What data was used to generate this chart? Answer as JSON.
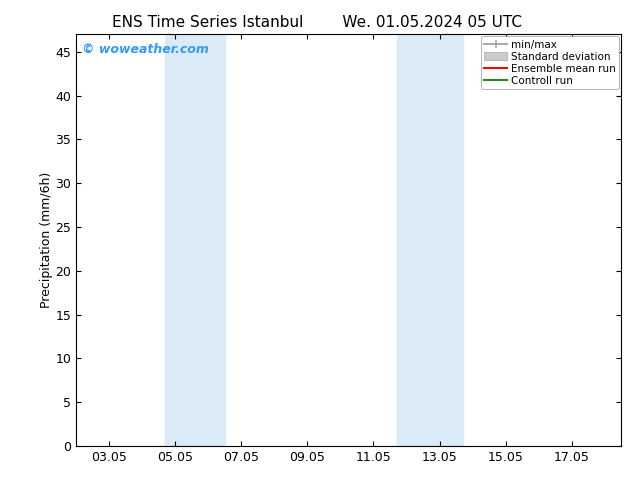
{
  "title_left": "ENS Time Series Istanbul",
  "title_right": "We. 01.05.2024 05 UTC",
  "ylabel": "Precipitation (mm/6h)",
  "xlabel": "",
  "ylim": [
    0,
    47
  ],
  "yticks": [
    0,
    5,
    10,
    15,
    20,
    25,
    30,
    35,
    40,
    45
  ],
  "xtick_labels": [
    "03.05",
    "05.05",
    "07.05",
    "09.05",
    "11.05",
    "13.05",
    "15.05",
    "17.05"
  ],
  "xtick_positions": [
    2,
    4,
    6,
    8,
    10,
    12,
    14,
    16
  ],
  "xmin": 1,
  "xmax": 17.5,
  "watermark": "© woweather.com",
  "watermark_color": "#3399ff",
  "bg_color": "#ffffff",
  "plot_bg_color": "#ffffff",
  "shaded_bands": [
    {
      "xmin": 3.7,
      "xmax": 5.5,
      "color": "#daeaf7"
    },
    {
      "xmin": 10.7,
      "xmax": 12.7,
      "color": "#daeaf7"
    }
  ],
  "legend_entries": [
    {
      "label": "min/max",
      "color": "#aaaaaa",
      "lw": 1.5,
      "style": "solid",
      "type": "line_cap"
    },
    {
      "label": "Standard deviation",
      "color": "#cccccc",
      "lw": 8,
      "style": "solid",
      "type": "patch"
    },
    {
      "label": "Ensemble mean run",
      "color": "#ff0000",
      "lw": 1.5,
      "style": "solid",
      "type": "line"
    },
    {
      "label": "Controll run",
      "color": "#228822",
      "lw": 1.5,
      "style": "solid",
      "type": "line"
    }
  ],
  "tick_direction": "in",
  "title_fontsize": 11,
  "axis_fontsize": 9,
  "watermark_fontsize": 9
}
